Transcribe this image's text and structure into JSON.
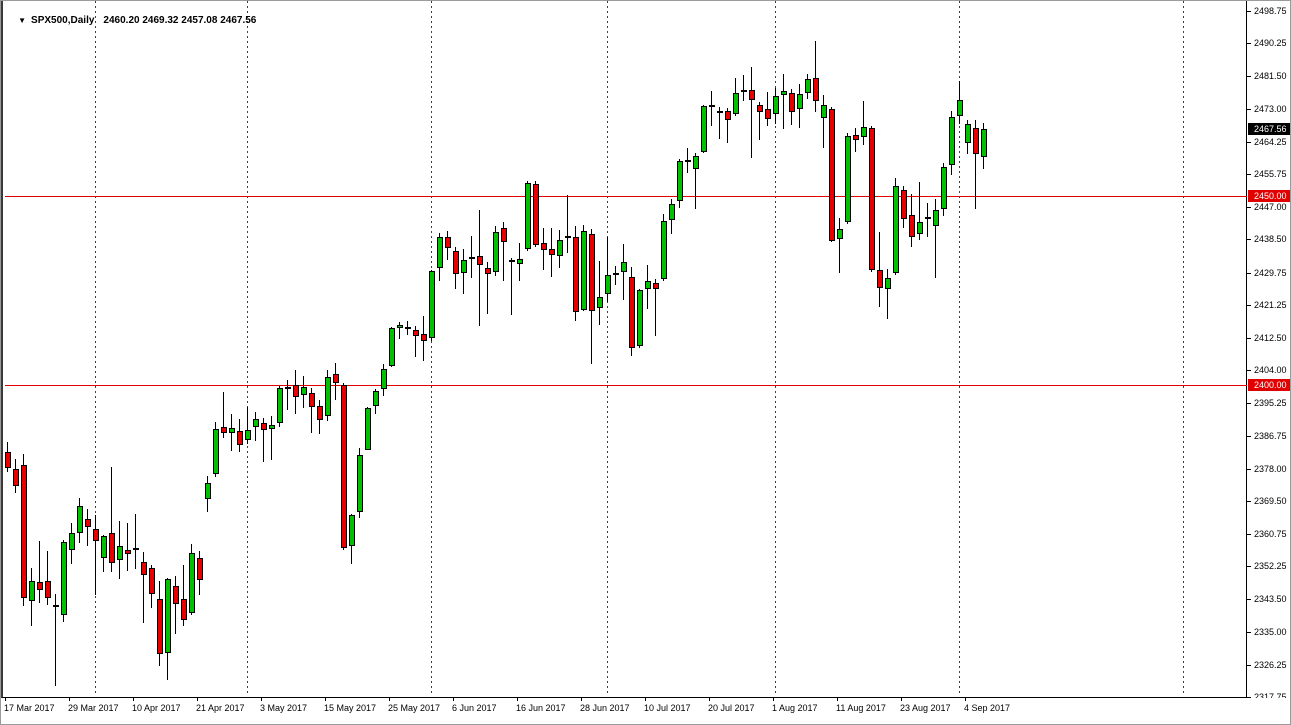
{
  "title": {
    "dropdown_icon": "▼",
    "symbol_period": "SPX500,Daily",
    "ohlc_text": "2460.20 2469.32 2457.08 2467.56"
  },
  "colors": {
    "up": "#00c000",
    "down": "#e80000",
    "candle_outline": "#000000",
    "wick": "#000000",
    "level_line": "#e00000",
    "grid": "#3c3c3c",
    "current_badge_bg": "#000000",
    "level_badge_bg": "#e00000",
    "badge_text": "#ffffff",
    "background": "#ffffff",
    "axis_text": "#000000"
  },
  "price_axis": {
    "ticks": [
      "2498.75",
      "2490.25",
      "2481.50",
      "2473.00",
      "2464.25",
      "2455.75",
      "2447.00",
      "2438.50",
      "2429.75",
      "2421.25",
      "2412.50",
      "2404.00",
      "2395.25",
      "2386.75",
      "2378.00",
      "2369.50",
      "2360.75",
      "2352.25",
      "2343.50",
      "2335.00",
      "2326.25",
      "2317.75"
    ],
    "current_price": {
      "label": "2467.56",
      "value": 2467.56
    }
  },
  "levels": [
    {
      "label": "2450.00",
      "value": 2450.0
    },
    {
      "label": "2400.00",
      "value": 2400.0
    }
  ],
  "time_axis": {
    "labels": [
      {
        "text": "17 Mar 2017",
        "bar": 0
      },
      {
        "text": "29 Mar 2017",
        "bar": 8
      },
      {
        "text": "10 Apr 2017",
        "bar": 16
      },
      {
        "text": "21 Apr 2017",
        "bar": 24
      },
      {
        "text": "3 May 2017",
        "bar": 32
      },
      {
        "text": "15 May 2017",
        "bar": 40
      },
      {
        "text": "25 May 2017",
        "bar": 48
      },
      {
        "text": "6 Jun 2017",
        "bar": 56
      },
      {
        "text": "16 Jun 2017",
        "bar": 64
      },
      {
        "text": "28 Jun 2017",
        "bar": 72
      },
      {
        "text": "10 Jul 2017",
        "bar": 80
      },
      {
        "text": "20 Jul 2017",
        "bar": 88
      },
      {
        "text": "1 Aug 2017",
        "bar": 96
      },
      {
        "text": "11 Aug 2017",
        "bar": 104
      },
      {
        "text": "23 Aug 2017",
        "bar": 112
      },
      {
        "text": "4 Sep 2017",
        "bar": 120
      }
    ]
  },
  "chart_data": {
    "type": "candlestick",
    "title": "SPX500,Daily",
    "symbol": "SPX500",
    "timeframe": "Daily",
    "ylim": [
      2317.75,
      2498.75
    ],
    "grid": "vertical-dashed-at-month-starts",
    "grid_month_bars": [
      11,
      30,
      53,
      75,
      96,
      119,
      147
    ],
    "last_bar_ohlc": {
      "open": 2460.2,
      "high": 2469.32,
      "low": 2457.08,
      "close": 2467.56
    },
    "bars": [
      [
        "17 Mar",
        2382.5,
        2385.1,
        2377.1,
        2378.3
      ],
      [
        "20 Mar",
        2378.0,
        2380.5,
        2371.6,
        2373.5
      ],
      [
        "21 Mar",
        2379.0,
        2381.9,
        2341.9,
        2344.0
      ],
      [
        "22 Mar",
        2343.0,
        2351.8,
        2336.5,
        2348.5
      ],
      [
        "23 Mar",
        2348.0,
        2358.9,
        2342.6,
        2346.0
      ],
      [
        "24 Mar",
        2348.5,
        2356.2,
        2342.0,
        2344.0
      ],
      [
        "27 Mar",
        2342.0,
        2344.9,
        2320.6,
        2341.6
      ],
      [
        "28 Mar",
        2339.5,
        2359.3,
        2337.6,
        2358.6
      ],
      [
        "29 Mar",
        2356.5,
        2363.8,
        2352.9,
        2361.1
      ],
      [
        "30 Mar",
        2361.0,
        2370.4,
        2358.4,
        2368.1
      ],
      [
        "31 Mar",
        2364.8,
        2367.3,
        2357.7,
        2362.7
      ],
      [
        "3 Apr",
        2362.0,
        2365.9,
        2344.7,
        2358.8
      ],
      [
        "4 Apr",
        2354.5,
        2360.5,
        2350.7,
        2360.2
      ],
      [
        "5 Apr",
        2361.0,
        2378.4,
        2350.7,
        2353.0
      ],
      [
        "6 Apr",
        2353.8,
        2364.2,
        2348.9,
        2357.5
      ],
      [
        "7 Apr",
        2356.6,
        2363.8,
        2350.9,
        2355.5
      ],
      [
        "10 Apr",
        2357.0,
        2366.0,
        2351.5,
        2357.2
      ],
      [
        "11 Apr",
        2353.5,
        2355.9,
        2337.2,
        2350.0
      ],
      [
        "12 Apr",
        2351.7,
        2352.7,
        2341.3,
        2344.9
      ],
      [
        "13 Apr",
        2343.5,
        2348.3,
        2325.9,
        2329.0
      ],
      [
        "17 Apr",
        2329.5,
        2349.1,
        2322.3,
        2349.0
      ],
      [
        "18 Apr",
        2347.0,
        2349.6,
        2334.5,
        2342.2
      ],
      [
        "19 Apr",
        2343.5,
        2352.5,
        2336.6,
        2338.2
      ],
      [
        "20 Apr",
        2340.0,
        2358.2,
        2339.5,
        2355.8
      ],
      [
        "21 Apr",
        2354.5,
        2356.2,
        2344.6,
        2348.7
      ],
      [
        "24 Apr",
        2370.0,
        2376.2,
        2366.6,
        2374.2
      ],
      [
        "25 Apr",
        2376.5,
        2390.2,
        2375.7,
        2388.6
      ],
      [
        "26 Apr",
        2389.0,
        2398.2,
        2386.0,
        2387.5
      ],
      [
        "27 Apr",
        2387.5,
        2392.4,
        2382.7,
        2388.8
      ],
      [
        "28 Apr",
        2388.0,
        2391.2,
        2382.4,
        2384.2
      ],
      [
        "1 May",
        2385.5,
        2394.3,
        2384.5,
        2388.3
      ],
      [
        "2 May",
        2389.0,
        2392.9,
        2385.2,
        2391.2
      ],
      [
        "3 May",
        2390.0,
        2391.5,
        2379.8,
        2388.1
      ],
      [
        "4 May",
        2388.5,
        2391.8,
        2380.3,
        2389.5
      ],
      [
        "5 May",
        2390.0,
        2399.9,
        2389.0,
        2399.3
      ],
      [
        "8 May",
        2399.5,
        2401.4,
        2393.6,
        2399.4
      ],
      [
        "9 May",
        2400.0,
        2404.1,
        2392.4,
        2396.9
      ],
      [
        "10 May",
        2397.5,
        2402.5,
        2394.0,
        2399.6
      ],
      [
        "11 May",
        2398.0,
        2399.3,
        2387.4,
        2394.4
      ],
      [
        "12 May",
        2394.5,
        2396.0,
        2387.2,
        2390.9
      ],
      [
        "15 May",
        2392.0,
        2404.0,
        2390.7,
        2402.3
      ],
      [
        "16 May",
        2403.0,
        2405.8,
        2396.1,
        2400.7
      ],
      [
        "17 May",
        2400.0,
        2400.5,
        2356.6,
        2357.0
      ],
      [
        "18 May",
        2357.5,
        2366.0,
        2352.8,
        2365.7
      ],
      [
        "19 May",
        2366.5,
        2383.5,
        2365.0,
        2381.7
      ],
      [
        "22 May",
        2383.0,
        2394.4,
        2382.9,
        2394.0
      ],
      [
        "23 May",
        2394.5,
        2399.0,
        2392.5,
        2398.4
      ],
      [
        "24 May",
        2399.0,
        2405.6,
        2397.2,
        2404.4
      ],
      [
        "25 May",
        2405.0,
        2415.4,
        2404.8,
        2415.1
      ],
      [
        "26 May",
        2415.0,
        2416.6,
        2412.2,
        2415.8
      ],
      [
        "29 May",
        2415.5,
        2417.0,
        2413.3,
        2415.3
      ],
      [
        "30 May",
        2414.5,
        2415.6,
        2407.5,
        2412.9
      ],
      [
        "31 May",
        2413.5,
        2418.3,
        2406.5,
        2411.8
      ],
      [
        "1 Jun",
        2412.5,
        2430.3,
        2411.8,
        2430.1
      ],
      [
        "2 Jun",
        2431.0,
        2440.2,
        2427.6,
        2439.1
      ],
      [
        "5 Jun",
        2439.0,
        2440.6,
        2433.0,
        2436.1
      ],
      [
        "6 Jun",
        2435.5,
        2436.5,
        2425.5,
        2429.3
      ],
      [
        "7 Jun",
        2429.5,
        2436.0,
        2424.2,
        2433.1
      ],
      [
        "8 Jun",
        2433.5,
        2439.3,
        2428.2,
        2433.8
      ],
      [
        "9 Jun",
        2434.0,
        2446.2,
        2415.7,
        2431.8
      ],
      [
        "12 Jun",
        2431.0,
        2432.5,
        2418.9,
        2429.4
      ],
      [
        "13 Jun",
        2430.0,
        2441.9,
        2428.8,
        2440.4
      ],
      [
        "14 Jun",
        2441.5,
        2443.2,
        2427.5,
        2437.9
      ],
      [
        "15 Jun",
        2433.0,
        2433.5,
        2418.5,
        2432.5
      ],
      [
        "16 Jun",
        2432.0,
        2437.5,
        2427.6,
        2433.2
      ],
      [
        "19 Jun",
        2436.0,
        2453.8,
        2435.5,
        2453.5
      ],
      [
        "20 Jun",
        2453.0,
        2454.0,
        2436.5,
        2437.0
      ],
      [
        "21 Jun",
        2437.5,
        2441.5,
        2430.5,
        2435.6
      ],
      [
        "22 Jun",
        2436.0,
        2441.6,
        2428.5,
        2434.5
      ],
      [
        "23 Jun",
        2434.0,
        2441.0,
        2431.0,
        2438.3
      ],
      [
        "26 Jun",
        2439.5,
        2450.1,
        2435.0,
        2439.1
      ],
      [
        "27 Jun",
        2439.0,
        2441.9,
        2417.0,
        2419.4
      ],
      [
        "28 Jun",
        2420.0,
        2442.3,
        2419.5,
        2440.7
      ],
      [
        "29 Jun",
        2440.0,
        2441.3,
        2405.7,
        2419.7
      ],
      [
        "30 Jun",
        2420.5,
        2432.7,
        2415.8,
        2423.4
      ],
      [
        "3 Jul",
        2424.0,
        2439.2,
        2422.0,
        2429.0
      ],
      [
        "4 Jul",
        2429.0,
        2431.5,
        2426.5,
        2429.5
      ],
      [
        "5 Jul",
        2430.0,
        2437.3,
        2422.5,
        2432.5
      ],
      [
        "6 Jul",
        2428.5,
        2431.1,
        2407.7,
        2409.8
      ],
      [
        "7 Jul",
        2410.5,
        2425.4,
        2409.8,
        2425.2
      ],
      [
        "10 Jul",
        2425.5,
        2431.7,
        2420.2,
        2427.4
      ],
      [
        "11 Jul",
        2427.0,
        2428.0,
        2412.9,
        2425.5
      ],
      [
        "12 Jul",
        2428.0,
        2445.3,
        2427.5,
        2443.3
      ],
      [
        "13 Jul",
        2443.5,
        2449.2,
        2440.0,
        2447.8
      ],
      [
        "14 Jul",
        2448.5,
        2459.8,
        2446.9,
        2459.3
      ],
      [
        "17 Jul",
        2459.5,
        2462.5,
        2456.0,
        2459.1
      ],
      [
        "18 Jul",
        2457.0,
        2461.4,
        2446.6,
        2460.6
      ],
      [
        "19 Jul",
        2461.5,
        2474.0,
        2461.2,
        2473.8
      ],
      [
        "20 Jul",
        2474.0,
        2477.6,
        2468.5,
        2473.5
      ],
      [
        "21 Jul",
        2472.5,
        2473.5,
        2465.0,
        2472.5
      ],
      [
        "24 Jul",
        2472.5,
        2473.1,
        2463.8,
        2469.9
      ],
      [
        "25 Jul",
        2471.5,
        2481.0,
        2471.0,
        2477.1
      ],
      [
        "26 Jul",
        2477.5,
        2481.9,
        2474.9,
        2477.8
      ],
      [
        "27 Jul",
        2478.0,
        2484.0,
        2459.9,
        2475.4
      ],
      [
        "28 Jul",
        2474.0,
        2474.8,
        2464.6,
        2472.1
      ],
      [
        "31 Jul",
        2473.0,
        2477.3,
        2468.4,
        2470.3
      ],
      [
        "1 Aug",
        2471.5,
        2478.5,
        2468.9,
        2476.3
      ],
      [
        "2 Aug",
        2476.5,
        2482.1,
        2467.5,
        2477.6
      ],
      [
        "3 Aug",
        2477.0,
        2478.2,
        2468.7,
        2472.2
      ],
      [
        "4 Aug",
        2473.0,
        2479.6,
        2467.8,
        2476.8
      ],
      [
        "7 Aug",
        2477.0,
        2482.0,
        2475.6,
        2480.9
      ],
      [
        "8 Aug",
        2481.0,
        2490.9,
        2472.0,
        2474.9
      ],
      [
        "9 Aug",
        2470.5,
        2476.5,
        2462.5,
        2474.0
      ],
      [
        "10 Aug",
        2473.0,
        2473.5,
        2437.8,
        2438.2
      ],
      [
        "11 Aug",
        2438.5,
        2444.1,
        2429.5,
        2441.3
      ],
      [
        "14 Aug",
        2443.0,
        2466.5,
        2442.5,
        2465.8
      ],
      [
        "15 Aug",
        2466.0,
        2468.0,
        2461.6,
        2464.6
      ],
      [
        "16 Aug",
        2465.5,
        2474.9,
        2463.5,
        2468.1
      ],
      [
        "17 Aug",
        2468.0,
        2468.5,
        2430.0,
        2430.5
      ],
      [
        "18 Aug",
        2430.5,
        2440.4,
        2420.7,
        2425.6
      ],
      [
        "21 Aug",
        2425.5,
        2430.6,
        2417.4,
        2428.4
      ],
      [
        "22 Aug",
        2429.5,
        2454.8,
        2429.0,
        2452.5
      ],
      [
        "23 Aug",
        2451.5,
        2452.5,
        2441.6,
        2444.0
      ],
      [
        "24 Aug",
        2445.0,
        2450.5,
        2436.4,
        2439.0
      ],
      [
        "25 Aug",
        2440.0,
        2453.7,
        2438.4,
        2443.1
      ],
      [
        "28 Aug",
        2444.5,
        2448.0,
        2439.2,
        2444.2
      ],
      [
        "29 Aug",
        2442.0,
        2449.1,
        2428.2,
        2446.3
      ],
      [
        "30 Aug",
        2446.5,
        2458.6,
        2444.6,
        2457.6
      ],
      [
        "31 Aug",
        2458.0,
        2472.3,
        2455.4,
        2470.8
      ],
      [
        "1 Sep",
        2471.0,
        2480.4,
        2469.0,
        2475.3
      ],
      [
        "4 Sep",
        2464.0,
        2470.0,
        2461.0,
        2468.9
      ],
      [
        "5 Sep",
        2467.8,
        2470.0,
        2446.5,
        2460.9
      ],
      [
        "6 Sep",
        2460.2,
        2469.3,
        2457.1,
        2467.6
      ]
    ]
  }
}
